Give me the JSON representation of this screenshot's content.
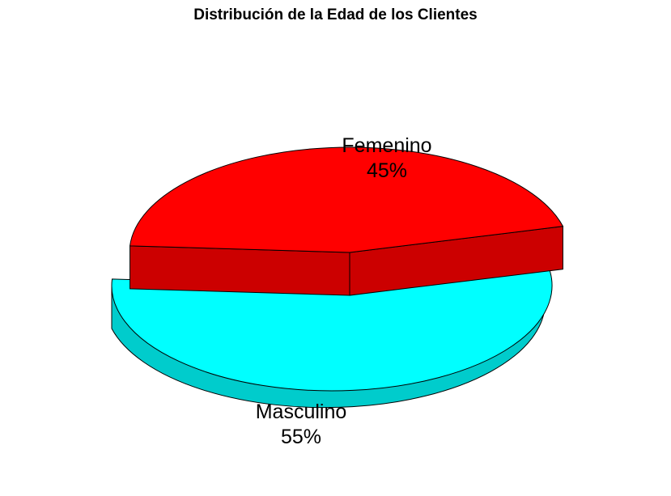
{
  "chart_data": {
    "type": "pie",
    "title": "Distribución de la Edad de los Clientes",
    "style": "3d-exploded",
    "slices": [
      {
        "name": "Femenino",
        "value": 45,
        "label": "45%",
        "top_color": "#ff0000",
        "side_color": "#cc0000"
      },
      {
        "name": "Masculino",
        "value": 55,
        "label": "55%",
        "top_color": "#00ffff",
        "side_color": "#00cccc"
      }
    ]
  }
}
